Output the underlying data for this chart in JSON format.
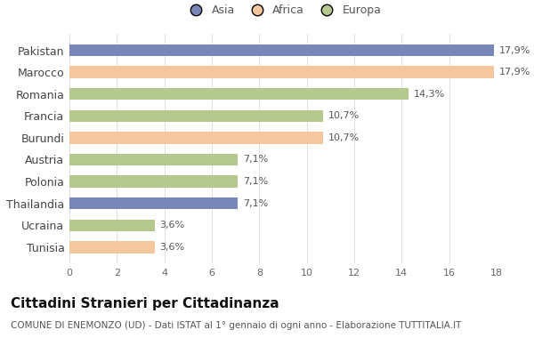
{
  "categories": [
    "Pakistan",
    "Marocco",
    "Romania",
    "Francia",
    "Burundi",
    "Austria",
    "Polonia",
    "Thailandia",
    "Ucraina",
    "Tunisia"
  ],
  "values": [
    17.9,
    17.9,
    14.3,
    10.7,
    10.7,
    7.1,
    7.1,
    7.1,
    3.6,
    3.6
  ],
  "labels": [
    "17,9%",
    "17,9%",
    "14,3%",
    "10,7%",
    "10,7%",
    "7,1%",
    "7,1%",
    "7,1%",
    "3,6%",
    "3,6%"
  ],
  "continents": [
    "Asia",
    "Africa",
    "Europa",
    "Europa",
    "Africa",
    "Europa",
    "Europa",
    "Asia",
    "Europa",
    "Africa"
  ],
  "colors": {
    "Asia": "#7986b8",
    "Africa": "#f5c79e",
    "Europa": "#b5c98e"
  },
  "xlim": [
    0,
    18
  ],
  "xticks": [
    0,
    2,
    4,
    6,
    8,
    10,
    12,
    14,
    16,
    18
  ],
  "title": "Cittadini Stranieri per Cittadinanza",
  "subtitle": "COMUNE DI ENEMONZO (UD) - Dati ISTAT al 1° gennaio di ogni anno - Elaborazione TUTTITALIA.IT",
  "background_color": "#ffffff",
  "bar_height": 0.55,
  "title_fontsize": 11,
  "subtitle_fontsize": 7.5,
  "label_fontsize": 8,
  "ytick_fontsize": 9,
  "xtick_fontsize": 8,
  "legend_fontsize": 9
}
